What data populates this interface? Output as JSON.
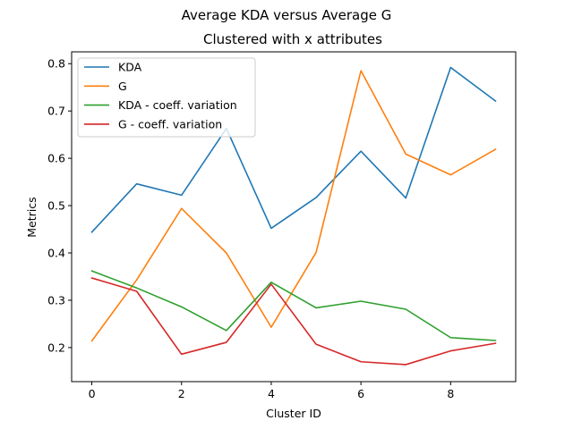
{
  "chart_data": {
    "type": "line",
    "suptitle": "Average KDA versus Average G",
    "title": "Clustered with x attributes",
    "xlabel": "Cluster ID",
    "ylabel": "Metrics",
    "x": [
      0,
      1,
      2,
      3,
      4,
      5,
      6,
      7,
      8,
      9
    ],
    "xlim": [
      -0.45,
      9.45
    ],
    "ylim": [
      0.128,
      0.825
    ],
    "xticks": [
      0,
      2,
      4,
      6,
      8
    ],
    "yticks": [
      0.2,
      0.3,
      0.4,
      0.5,
      0.6,
      0.7,
      0.8
    ],
    "xtick_labels": [
      "0",
      "2",
      "4",
      "6",
      "8"
    ],
    "ytick_labels": [
      "0.2",
      "0.3",
      "0.4",
      "0.5",
      "0.6",
      "0.7",
      "0.8"
    ],
    "grid": false,
    "legend_position": "upper-left",
    "series": [
      {
        "name": "KDA",
        "color": "#1f77b4",
        "values": [
          0.444,
          0.546,
          0.522,
          0.663,
          0.452,
          0.517,
          0.615,
          0.516,
          0.792,
          0.721
        ]
      },
      {
        "name": "G",
        "color": "#ff7f0e",
        "values": [
          0.214,
          0.343,
          0.494,
          0.4,
          0.243,
          0.401,
          0.785,
          0.609,
          0.565,
          0.619
        ]
      },
      {
        "name": "KDA - coeff. variation",
        "color": "#2ca02c",
        "values": [
          0.362,
          0.326,
          0.286,
          0.236,
          0.338,
          0.284,
          0.298,
          0.281,
          0.221,
          0.215
        ]
      },
      {
        "name": "G - coeff. variation",
        "color": "#d62728",
        "values": [
          0.347,
          0.319,
          0.186,
          0.211,
          0.334,
          0.207,
          0.17,
          0.164,
          0.193,
          0.209
        ]
      }
    ]
  }
}
